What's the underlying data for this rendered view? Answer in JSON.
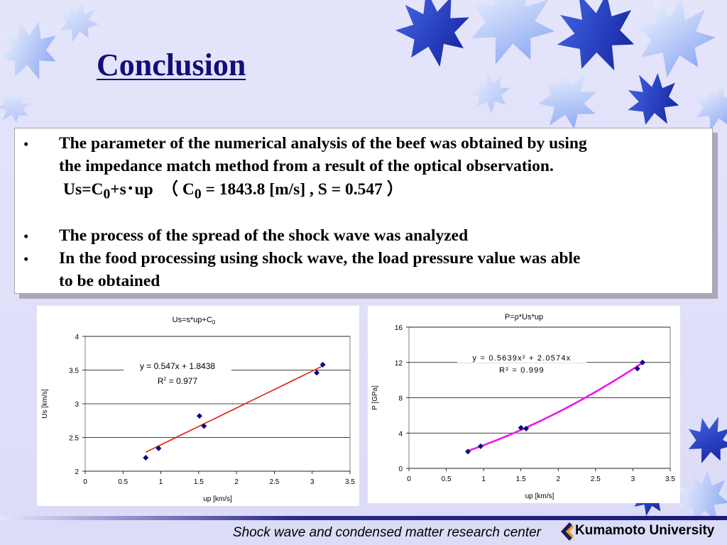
{
  "slide": {
    "title": "Conclusion",
    "bullets": [
      {
        "symbol": "•",
        "line1": "The parameter of the numerical analysis of the beef was obtained by using",
        "line2": "the impedance match method from a result of the optical observation."
      },
      {
        "symbol": "•",
        "text": "The process of the spread of the shock wave was analyzed"
      },
      {
        "symbol": "•",
        "line1": "In the food processing using shock wave, the load pressure value was able",
        "line2": "to be obtained"
      }
    ],
    "formula": {
      "us": "Us=C",
      "sub0": "0",
      "rest": "+s･up　（ C",
      "sub1": "0",
      "tail": " = 1843.8 [m/s] , S = 0.547 ）"
    }
  },
  "footer": {
    "center_text": "Shock wave and condensed matter research center",
    "logo_text": "Kumamoto University",
    "logo_color": "#1a1a5c",
    "logo_accent": "#e8a000"
  },
  "theme": {
    "title_color": "#10107a",
    "marker_color": "#0b0b80",
    "fit1_color": "#e02010",
    "fit2_color": "#f010f0"
  },
  "chart_data": [
    {
      "type": "scatter",
      "title": "Us=s*up+C",
      "title_sub": "0",
      "xlabel": "up [km/s]",
      "ylabel": "Us [km/s]",
      "xlim": [
        0,
        3.5
      ],
      "ylim": [
        2,
        4
      ],
      "xticks": [
        0,
        0.5,
        1,
        1.5,
        2,
        2.5,
        3,
        3.5
      ],
      "yticks": [
        2,
        2.5,
        3,
        3.5,
        4
      ],
      "grid": "horizontal",
      "points": [
        [
          0.8,
          2.2
        ],
        [
          0.97,
          2.34
        ],
        [
          1.51,
          2.82
        ],
        [
          1.57,
          2.67
        ],
        [
          3.06,
          3.46
        ],
        [
          3.14,
          3.58
        ]
      ],
      "fit": {
        "type": "linear",
        "a": 0.547,
        "b": 1.8438,
        "x_range": [
          0.8,
          3.14
        ]
      },
      "equation": "y = 0.547x + 1.8438",
      "r2_label": "R",
      "r2_exp": "2",
      "r2_value": " = 0.977"
    },
    {
      "type": "scatter",
      "title": "P=ρ*Us*up",
      "xlabel": "up [km/s]",
      "ylabel": "P [GPa]",
      "xlim": [
        0,
        3.5
      ],
      "ylim": [
        0,
        16
      ],
      "xticks": [
        0,
        0.5,
        1,
        1.5,
        2,
        2.5,
        3,
        3.5
      ],
      "yticks": [
        0,
        4,
        8,
        12,
        16
      ],
      "grid": "horizontal",
      "points": [
        [
          0.79,
          1.9
        ],
        [
          0.96,
          2.5
        ],
        [
          1.5,
          4.6
        ],
        [
          1.57,
          4.5
        ],
        [
          3.06,
          11.3
        ],
        [
          3.13,
          12.0
        ]
      ],
      "fit": {
        "type": "poly2",
        "a": 0.5639,
        "b": 2.0574,
        "x_range": [
          0.79,
          3.13
        ]
      },
      "equation": "y = 0.5639x² + 2.0574x",
      "r2_label": "R² = 0.999"
    }
  ]
}
